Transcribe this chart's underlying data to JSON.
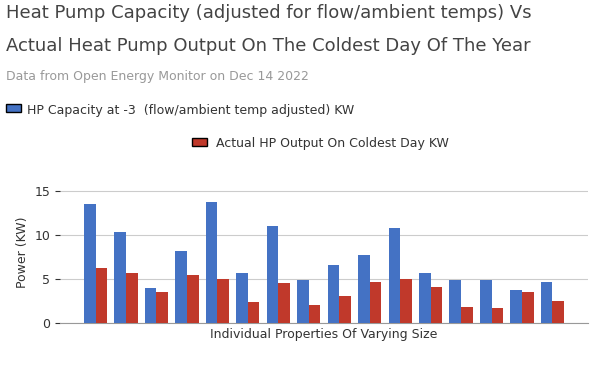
{
  "title_line1": "Heat Pump Capacity (adjusted for flow/ambient temps) Vs",
  "title_line2": "Actual Heat Pump Output On The Coldest Day Of The Year",
  "subtitle": "Data from Open Energy Monitor on Dec 14 2022",
  "legend1": "HP Capacity at -3  (flow/ambient temp adjusted) KW",
  "legend2": "Actual HP Output On Coldest Day KW",
  "xlabel": "Individual Properties Of Varying Size",
  "ylabel": "Power (KW)",
  "blue_values": [
    13.5,
    10.3,
    4.0,
    8.2,
    13.7,
    5.7,
    11.0,
    4.8,
    6.6,
    7.7,
    10.7,
    5.7,
    4.8,
    4.8,
    3.7,
    4.6
  ],
  "red_values": [
    6.2,
    5.7,
    3.5,
    5.4,
    5.0,
    2.4,
    4.5,
    2.0,
    3.0,
    4.6,
    5.0,
    4.1,
    1.8,
    1.7,
    3.5,
    2.5
  ],
  "blue_color": "#4472C4",
  "red_color": "#C0392B",
  "ylim": [
    0,
    16
  ],
  "yticks": [
    0,
    5,
    10,
    15
  ],
  "title_fontsize": 13,
  "subtitle_fontsize": 9,
  "legend_fontsize": 9,
  "label_fontsize": 9,
  "tick_fontsize": 9,
  "background_color": "#FFFFFF",
  "grid_color": "#CCCCCC",
  "title_color": "#444444",
  "subtitle_color": "#999999"
}
